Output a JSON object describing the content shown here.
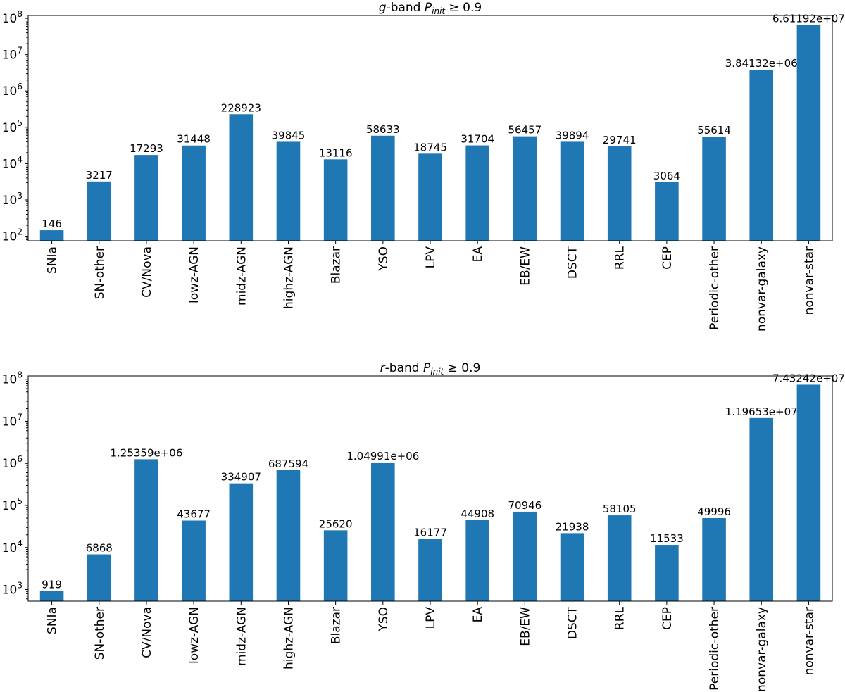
{
  "chart_data": [
    {
      "type": "bar",
      "title_prefix": "g",
      "title_mid": "-band ",
      "title_symbol": "P",
      "title_subscript": "init",
      "title_suffix": " ≥ 0.9",
      "categories": [
        "SNIa",
        "SN-other",
        "CV/Nova",
        "lowz-AGN",
        "midz-AGN",
        "highz-AGN",
        "Blazar",
        "YSO",
        "LPV",
        "EA",
        "EB/EW",
        "DSCT",
        "RRL",
        "CEP",
        "Periodic-other",
        "nonvar-galaxy",
        "nonvar-star"
      ],
      "values": [
        146,
        3217,
        17293,
        31448,
        228923,
        39845,
        13116,
        58633,
        18745,
        31704,
        56457,
        39894,
        29741,
        3064,
        55614,
        3841320,
        66119200
      ],
      "value_labels": [
        "146",
        "3217",
        "17293",
        "31448",
        "228923",
        "39845",
        "13116",
        "58633",
        "18745",
        "31704",
        "56457",
        "39894",
        "29741",
        "3064",
        "55614",
        "3.84132e+06",
        "6.61192e+07"
      ],
      "yscale": "log",
      "ylim": [
        75,
        120000000
      ],
      "yticks": [
        100,
        1000,
        10000,
        100000,
        1000000,
        10000000,
        100000000
      ],
      "ytick_bases": [
        "10",
        "10",
        "10",
        "10",
        "10",
        "10",
        "10"
      ],
      "ytick_exponents": [
        "2",
        "3",
        "4",
        "5",
        "6",
        "7",
        "8"
      ],
      "grid": false,
      "bar_color": "#1f77b4"
    },
    {
      "type": "bar",
      "title_prefix": "r",
      "title_mid": "-band ",
      "title_symbol": "P",
      "title_subscript": "init",
      "title_suffix": " ≥ 0.9",
      "categories": [
        "SNIa",
        "SN-other",
        "CV/Nova",
        "lowz-AGN",
        "midz-AGN",
        "highz-AGN",
        "Blazar",
        "YSO",
        "LPV",
        "EA",
        "EB/EW",
        "DSCT",
        "RRL",
        "CEP",
        "Periodic-other",
        "nonvar-galaxy",
        "nonvar-star"
      ],
      "values": [
        919,
        6868,
        1253590,
        43677,
        334907,
        687594,
        25620,
        1049910,
        16177,
        44908,
        70946,
        21938,
        58105,
        11533,
        49996,
        11965300,
        74324200
      ],
      "value_labels": [
        "919",
        "6868",
        "1.25359e+06",
        "43677",
        "334907",
        "687594",
        "25620",
        "1.04991e+06",
        "16177",
        "44908",
        "70946",
        "21938",
        "58105",
        "11533",
        "49996",
        "1.19653e+07",
        "7.43242e+07"
      ],
      "yscale": "log",
      "ylim": [
        530,
        120000000
      ],
      "yticks": [
        1000,
        10000,
        100000,
        1000000,
        10000000,
        100000000
      ],
      "ytick_bases": [
        "10",
        "10",
        "10",
        "10",
        "10",
        "10"
      ],
      "ytick_exponents": [
        "3",
        "4",
        "5",
        "6",
        "7",
        "8"
      ],
      "grid": false,
      "bar_color": "#1f77b4"
    }
  ]
}
